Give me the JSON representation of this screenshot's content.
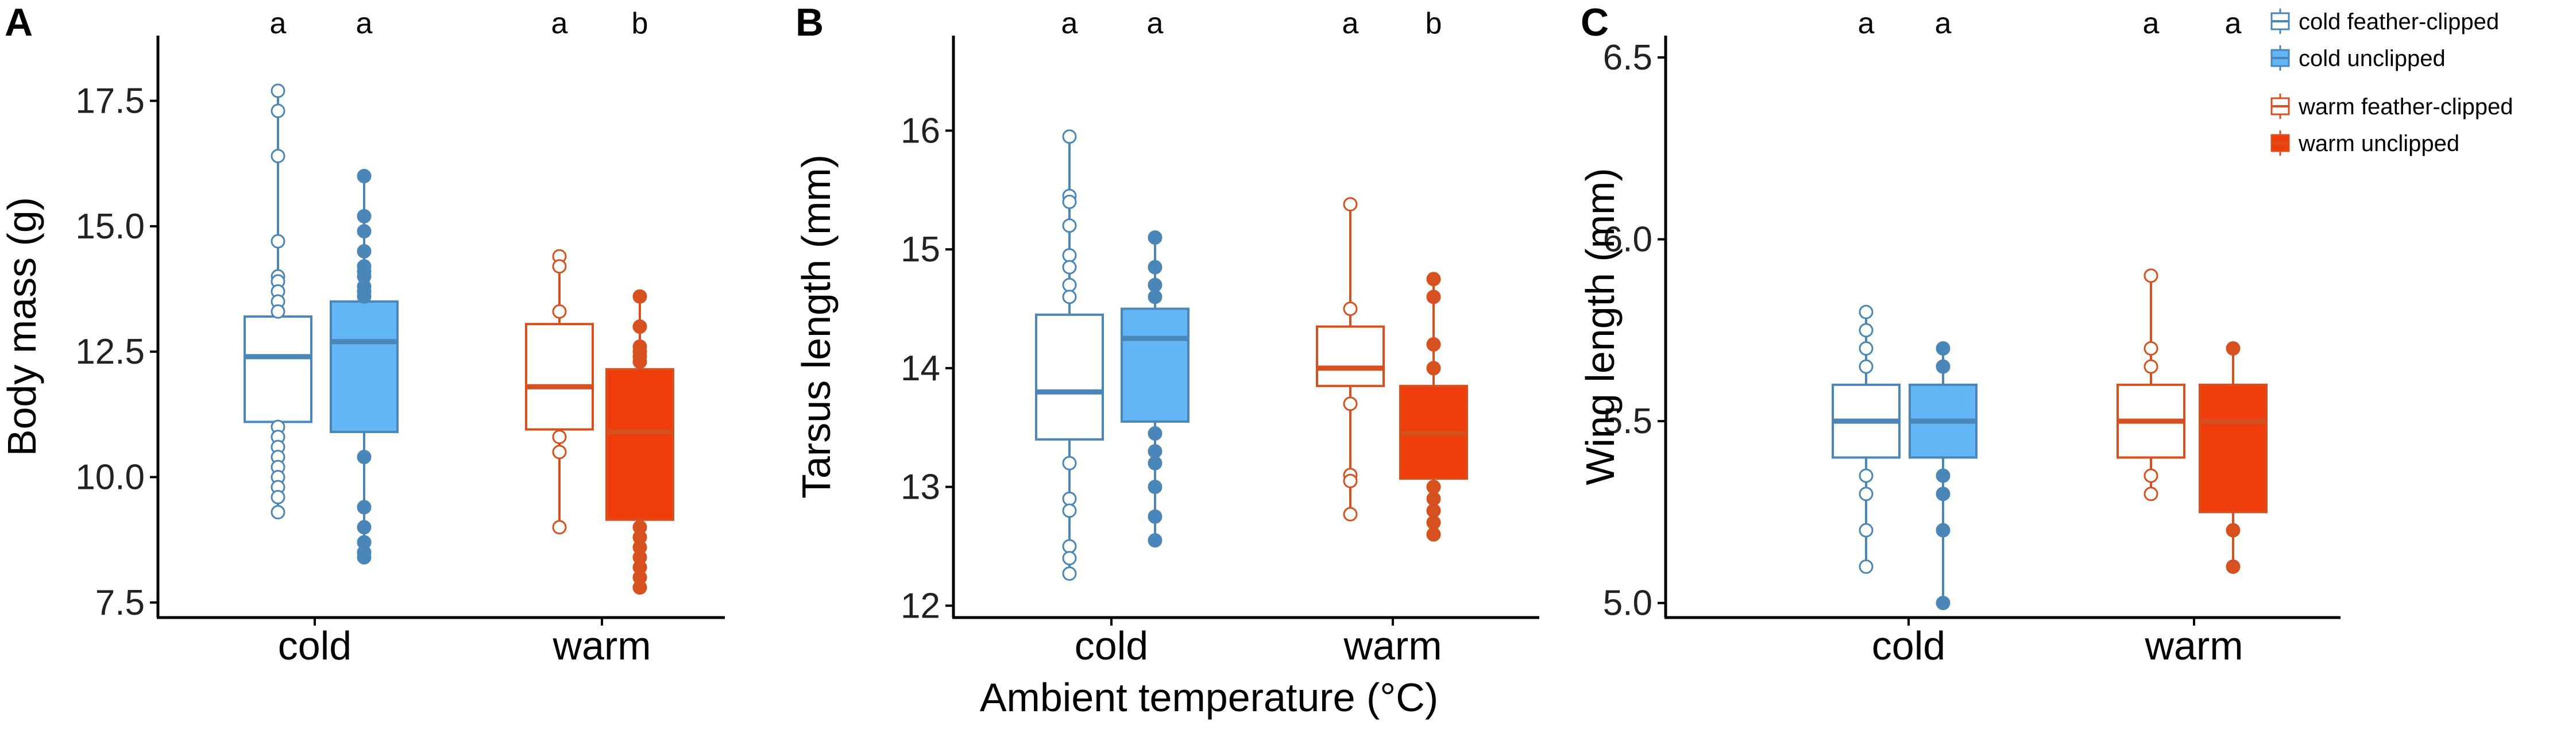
{
  "figure": {
    "x_title": "Ambient temperature (°C)",
    "colors": {
      "cold_edge": "#4a86b8",
      "cold_fill": "#63b6f5",
      "warm_edge": "#d6511f",
      "warm_fill": "#ee3d0a",
      "white": "#ffffff"
    }
  },
  "legend": {
    "items": [
      {
        "label": "cold  feather-clipped",
        "group": "cold",
        "treatment": "feather-clipped"
      },
      {
        "label": "cold  unclipped",
        "group": "cold",
        "treatment": "unclipped"
      },
      {
        "label": "warm  feather-clipped",
        "group": "warm",
        "treatment": "feather-clipped"
      },
      {
        "label": "warm  unclipped",
        "group": "warm",
        "treatment": "unclipped"
      }
    ]
  },
  "chart_data": [
    {
      "type": "box",
      "panel": "A",
      "ylabel": "Body mass (g)",
      "ylim": [
        7.2,
        18.8
      ],
      "yticks": [
        7.5,
        10.0,
        12.5,
        15.0,
        17.5
      ],
      "ytick_labels": [
        "7.5",
        "10.0",
        "12.5",
        "15.0",
        "17.5"
      ],
      "categories": [
        "cold",
        "warm"
      ],
      "boxes": [
        {
          "group": "cold",
          "treatment": "feather-clipped",
          "sig": "a",
          "q1": 11.1,
          "median": 12.4,
          "q3": 13.2,
          "whisker_low": 9.3,
          "whisker_high": 17.7,
          "points": [
            17.7,
            17.3,
            16.4,
            14.7,
            14.0,
            13.9,
            13.7,
            13.5,
            13.3,
            11.0,
            10.8,
            10.6,
            10.4,
            10.2,
            10.0,
            9.8,
            9.6,
            9.3
          ]
        },
        {
          "group": "cold",
          "treatment": "unclipped",
          "sig": "a",
          "q1": 10.9,
          "median": 12.7,
          "q3": 13.5,
          "whisker_low": 8.4,
          "whisker_high": 16.0,
          "points": [
            16.0,
            15.2,
            14.9,
            14.5,
            14.2,
            14.1,
            14.0,
            13.8,
            13.7,
            13.6,
            10.4,
            9.4,
            9.0,
            8.7,
            8.5,
            8.4
          ]
        },
        {
          "group": "warm",
          "treatment": "feather-clipped",
          "sig": "a",
          "q1": 10.95,
          "median": 11.8,
          "q3": 13.05,
          "whisker_low": 9.0,
          "whisker_high": 14.4,
          "points": [
            14.4,
            14.2,
            13.3,
            10.8,
            10.5,
            9.0
          ]
        },
        {
          "group": "warm",
          "treatment": "unclipped",
          "sig": "b",
          "q1": 9.15,
          "median": 10.9,
          "q3": 12.15,
          "whisker_low": 7.8,
          "whisker_high": 13.6,
          "points": [
            13.6,
            13.0,
            12.6,
            12.5,
            12.4,
            12.3,
            9.0,
            8.8,
            8.6,
            8.4,
            8.2,
            8.0,
            7.8
          ]
        }
      ]
    },
    {
      "type": "box",
      "panel": "B",
      "ylabel": "Tarsus length (mm)",
      "ylim": [
        11.9,
        16.8
      ],
      "yticks": [
        12,
        13,
        14,
        15,
        16
      ],
      "ytick_labels": [
        "12",
        "13",
        "14",
        "15",
        "16"
      ],
      "categories": [
        "cold",
        "warm"
      ],
      "boxes": [
        {
          "group": "cold",
          "treatment": "feather-clipped",
          "sig": "a",
          "q1": 13.4,
          "median": 13.8,
          "q3": 14.45,
          "whisker_low": 12.27,
          "whisker_high": 15.95,
          "points": [
            15.95,
            15.45,
            15.4,
            15.2,
            14.95,
            14.85,
            14.7,
            14.6,
            13.2,
            12.9,
            12.8,
            12.5,
            12.4,
            12.27
          ]
        },
        {
          "group": "cold",
          "treatment": "unclipped",
          "sig": "a",
          "q1": 13.55,
          "median": 14.25,
          "q3": 14.5,
          "whisker_low": 12.55,
          "whisker_high": 15.1,
          "points": [
            15.1,
            14.85,
            14.7,
            14.6,
            13.45,
            13.3,
            13.2,
            13.0,
            12.75,
            12.55
          ]
        },
        {
          "group": "warm",
          "treatment": "feather-clipped",
          "sig": "a",
          "q1": 13.85,
          "median": 14.0,
          "q3": 14.35,
          "whisker_low": 12.77,
          "whisker_high": 15.38,
          "points": [
            15.38,
            14.5,
            13.7,
            13.1,
            13.05,
            12.77
          ]
        },
        {
          "group": "warm",
          "treatment": "unclipped",
          "sig": "b",
          "q1": 13.07,
          "median": 13.45,
          "q3": 13.85,
          "whisker_low": 12.6,
          "whisker_high": 14.75,
          "points": [
            14.75,
            14.6,
            14.2,
            14.0,
            13.0,
            12.9,
            12.8,
            12.7,
            12.6
          ]
        }
      ]
    },
    {
      "type": "box",
      "panel": "C",
      "ylabel": "Wing length (mm)",
      "ylim": [
        4.96,
        6.56
      ],
      "yticks": [
        5.0,
        5.5,
        6.0,
        6.5
      ],
      "ytick_labels": [
        "5.0",
        "5.5",
        "6.0",
        "6.5"
      ],
      "categories": [
        "cold",
        "warm"
      ],
      "boxes": [
        {
          "group": "cold",
          "treatment": "feather-clipped",
          "sig": "a",
          "q1": 5.4,
          "median": 5.5,
          "q3": 5.6,
          "whisker_low": 5.1,
          "whisker_high": 5.8,
          "points": [
            5.8,
            5.75,
            5.7,
            5.65,
            5.35,
            5.3,
            5.2,
            5.1
          ]
        },
        {
          "group": "cold",
          "treatment": "unclipped",
          "sig": "a",
          "q1": 5.4,
          "median": 5.5,
          "q3": 5.6,
          "whisker_low": 5.0,
          "whisker_high": 5.7,
          "points": [
            5.7,
            5.65,
            5.35,
            5.3,
            5.2,
            5.0
          ]
        },
        {
          "group": "warm",
          "treatment": "feather-clipped",
          "sig": "a",
          "q1": 5.4,
          "median": 5.5,
          "q3": 5.6,
          "whisker_low": 5.3,
          "whisker_high": 5.9,
          "points": [
            5.9,
            5.7,
            5.65,
            5.35,
            5.3
          ]
        },
        {
          "group": "warm",
          "treatment": "unclipped",
          "sig": "a",
          "q1": 5.25,
          "median": 5.5,
          "q3": 5.6,
          "whisker_low": 5.1,
          "whisker_high": 5.7,
          "points": [
            5.7,
            5.2,
            5.1
          ]
        }
      ]
    }
  ]
}
